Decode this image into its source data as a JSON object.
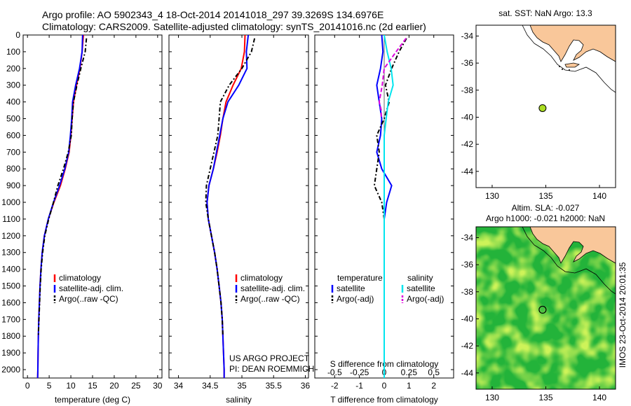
{
  "header": {
    "title": "Argo profile: AO 5902343_4 18-Oct-2014 20141018_297 39.3269S 134.6976E",
    "subtitle": "Climatology: CARS2009. Satellite-adjusted climatology: synTS_20141016.nc (2d earlier)"
  },
  "colors": {
    "climatology": "#ff0000",
    "satellite": "#0000ff",
    "argo": "#000000",
    "salinity_satellite": "#00e5ee",
    "salinity_argo": "#dd00dd",
    "land": "#f9c79a",
    "float_marker": "#aadd22"
  },
  "chart_data": [
    {
      "id": "temperature",
      "type": "line",
      "xlabel": "temperature (deg C)",
      "xlim": [
        -1,
        31
      ],
      "xticks": [
        "0",
        "5",
        "10",
        "15",
        "20",
        "25",
        "30"
      ],
      "ylim": [
        0,
        2050
      ],
      "yticks": [
        "0",
        "100",
        "200",
        "300",
        "400",
        "500",
        "600",
        "700",
        "800",
        "900",
        "1000",
        "1100",
        "1200",
        "1300",
        "1400",
        "1500",
        "1600",
        "1700",
        "1800",
        "1900",
        "2000"
      ],
      "legend": [
        "climatology",
        "satellite-adj. clim.",
        "Argo(..raw -QC)"
      ],
      "series": [
        {
          "name": "climatology",
          "style": "solid",
          "color": "#ff0000",
          "x": [
            12.9,
            12.6,
            12.1,
            11.3,
            10.6,
            10.3,
            10.0,
            9.6,
            8.7,
            7.6,
            6.1,
            4.8,
            3.9,
            3.4,
            3.1,
            2.9,
            2.75,
            2.6,
            2.5,
            2.45,
            2.4,
            2.35
          ],
          "y": [
            0,
            100,
            200,
            300,
            400,
            500,
            600,
            700,
            800,
            900,
            1000,
            1100,
            1200,
            1300,
            1400,
            1500,
            1600,
            1700,
            1800,
            1900,
            2000,
            2050
          ]
        },
        {
          "name": "satellite-adj. clim.",
          "style": "solid",
          "color": "#0000ff",
          "x": [
            12.7,
            12.6,
            12.0,
            11.1,
            10.4,
            10.2,
            9.9,
            9.5,
            8.6,
            7.4,
            6.0,
            4.8,
            3.9,
            3.4,
            3.1,
            2.9,
            2.75,
            2.6,
            2.5,
            2.45,
            2.4,
            2.35
          ],
          "y": [
            0,
            100,
            200,
            300,
            400,
            500,
            600,
            700,
            800,
            900,
            1000,
            1100,
            1200,
            1300,
            1400,
            1500,
            1600,
            1700,
            1800,
            1900,
            2000,
            2050
          ]
        },
        {
          "name": "Argo(..raw -QC)",
          "style": "dashdot",
          "color": "#000000",
          "x": [
            13.6,
            13.3,
            12.3,
            11.4,
            10.6,
            10.3,
            10.1,
            9.4,
            8.3,
            7.0,
            6.0,
            4.9,
            4.0,
            3.5,
            3.15,
            2.95,
            2.8,
            2.65,
            2.5
          ],
          "y": [
            20,
            100,
            200,
            300,
            400,
            500,
            600,
            700,
            800,
            900,
            1000,
            1100,
            1200,
            1300,
            1400,
            1500,
            1600,
            1700,
            1800
          ]
        }
      ]
    },
    {
      "id": "salinity",
      "type": "line",
      "xlabel": "salinity",
      "xlim": [
        33.85,
        36.05
      ],
      "xticks": [
        "34",
        "34.5",
        "35",
        "35.5",
        "36"
      ],
      "ylim": [
        0,
        2050
      ],
      "legend": [
        "climatology",
        "satellite-adj. clim.",
        "Argo(..raw -QC)"
      ],
      "annotation": [
        "US ARGO PROJECT",
        "PI: DEAN ROEMMICH"
      ],
      "series": [
        {
          "name": "climatology",
          "style": "solid",
          "color": "#ff0000",
          "x": [
            35.05,
            35.04,
            34.99,
            34.86,
            34.75,
            34.7,
            34.66,
            34.61,
            34.55,
            34.48,
            34.45,
            34.47,
            34.52,
            34.57,
            34.61,
            34.64,
            34.67,
            34.69,
            34.7,
            34.71,
            34.72,
            34.72
          ],
          "y": [
            0,
            100,
            200,
            300,
            400,
            500,
            600,
            700,
            800,
            900,
            1000,
            1100,
            1200,
            1300,
            1400,
            1500,
            1600,
            1700,
            1800,
            1900,
            2000,
            2050
          ]
        },
        {
          "name": "satellite-adj. clim.",
          "style": "solid",
          "color": "#0000ff",
          "x": [
            35.1,
            35.07,
            35.08,
            34.95,
            34.78,
            34.7,
            34.65,
            34.6,
            34.55,
            34.48,
            34.45,
            34.47,
            34.52,
            34.57,
            34.61,
            34.64,
            34.67,
            34.69,
            34.7,
            34.71,
            34.72,
            34.72
          ],
          "y": [
            0,
            100,
            200,
            300,
            400,
            500,
            600,
            700,
            800,
            900,
            1000,
            1100,
            1200,
            1300,
            1400,
            1500,
            1600,
            1700,
            1800,
            1900,
            2000,
            2050
          ]
        },
        {
          "name": "Argo(..raw -QC)",
          "style": "dashdot",
          "color": "#000000",
          "x": [
            35.2,
            35.15,
            35.0,
            34.8,
            34.66,
            34.64,
            34.62,
            34.56,
            34.5,
            34.44,
            34.43,
            34.47,
            34.52,
            34.57,
            34.61,
            34.64,
            34.67,
            34.69,
            34.7
          ],
          "y": [
            20,
            100,
            200,
            300,
            400,
            500,
            600,
            700,
            800,
            900,
            1000,
            1100,
            1200,
            1300,
            1400,
            1500,
            1600,
            1700,
            1800
          ]
        }
      ]
    },
    {
      "id": "difference",
      "type": "line",
      "xlabel": "T difference from climatology",
      "xlabel_top": "S difference from climatology",
      "xlim": [
        -2.8,
        2.8
      ],
      "xticks": [
        "-2",
        "-1",
        "0",
        "1",
        "2"
      ],
      "xticks_top": [
        "-0.5",
        "-0.25",
        "0",
        "0.25",
        "0.5"
      ],
      "ylim": [
        0,
        2050
      ],
      "legend_temperature": [
        "temperature",
        "satellite",
        "Argo(-adj)"
      ],
      "legend_salinity": [
        "salinity",
        "satellite",
        "Argo(-adj)"
      ],
      "series": [
        {
          "name": "satellite",
          "quantity": "temperature",
          "style": "solid",
          "color": "#0000ff",
          "x": [
            -0.1,
            -0.05,
            -0.15,
            -0.3,
            -0.2,
            -0.1,
            -0.15,
            -0.3,
            -0.1,
            0.3,
            0.1,
            0.0,
            0.0,
            0.0,
            0.0,
            0.0,
            0.0,
            0.0,
            0.0,
            0.0,
            0.0,
            0.0
          ],
          "y": [
            0,
            100,
            200,
            300,
            400,
            500,
            600,
            700,
            800,
            900,
            1000,
            1100,
            1200,
            1300,
            1400,
            1500,
            1600,
            1700,
            1800,
            1900,
            2000,
            2050
          ]
        },
        {
          "name": "Argo(-adj)",
          "quantity": "temperature",
          "style": "dashdot",
          "color": "#000000",
          "x": [
            0.9,
            0.6,
            0.3,
            0.05,
            0.2,
            0.0,
            -0.3,
            -0.2,
            -0.3,
            -0.4,
            -0.1,
            0.0,
            0.0,
            0.0,
            0.0,
            0.0,
            0.0,
            0.0,
            0.0
          ],
          "y": [
            20,
            100,
            200,
            300,
            400,
            500,
            600,
            700,
            800,
            900,
            1000,
            1100,
            1200,
            1300,
            1400,
            1500,
            1600,
            1700,
            1800
          ]
        },
        {
          "name": "satellite",
          "quantity": "salinity",
          "style": "solid",
          "color": "#00e5ee",
          "x": [
            0.0,
            0.03,
            0.07,
            0.09,
            0.04,
            0.02,
            0.0,
            0.0,
            0.0,
            0.0,
            0.0,
            0.0,
            0.0,
            0.0,
            0.0,
            0.0,
            0.0,
            0.0,
            0.0,
            0.0,
            0.0,
            0.0
          ],
          "y": [
            0,
            100,
            200,
            300,
            400,
            500,
            600,
            700,
            800,
            900,
            1000,
            1100,
            1200,
            1300,
            1400,
            1500,
            1600,
            1700,
            1800,
            1900,
            2000,
            2050
          ]
        },
        {
          "name": "Argo(-adj)",
          "quantity": "salinity",
          "style": "dashed",
          "color": "#dd00dd",
          "x": [
            0.22,
            0.12,
            0.0,
            -0.02,
            -0.05,
            -0.03,
            -0.03
          ],
          "y": [
            20,
            100,
            200,
            300,
            400,
            450,
            500
          ]
        }
      ]
    },
    {
      "id": "sst_map",
      "type": "scatter",
      "title": "sat. SST: NaN Argo: 13.3",
      "xlim": [
        128.5,
        141.5
      ],
      "ylim": [
        -45.2,
        -33.2
      ],
      "xticks": [
        "130",
        "135",
        "140"
      ],
      "yticks": [
        "-34",
        "-36",
        "-38",
        "-40",
        "-42",
        "-44"
      ],
      "float_position": {
        "lon": 134.6976,
        "lat": -39.3269
      }
    },
    {
      "id": "sla_map",
      "type": "heatmap",
      "title": [
        "Altim. SLA: -0.027",
        "Argo h1000: -0.021 h2000: NaN"
      ],
      "xlim": [
        128.5,
        141.5
      ],
      "ylim": [
        -45.2,
        -33.2
      ],
      "xticks": [
        "130",
        "135",
        "140"
      ],
      "yticks": [
        "-34",
        "-36",
        "-38",
        "-40",
        "-42",
        "-44"
      ],
      "float_position": {
        "lon": 134.6976,
        "lat": -39.3269
      },
      "side_label": "IMOS 23-Oct-2014 20:01:35"
    }
  ]
}
